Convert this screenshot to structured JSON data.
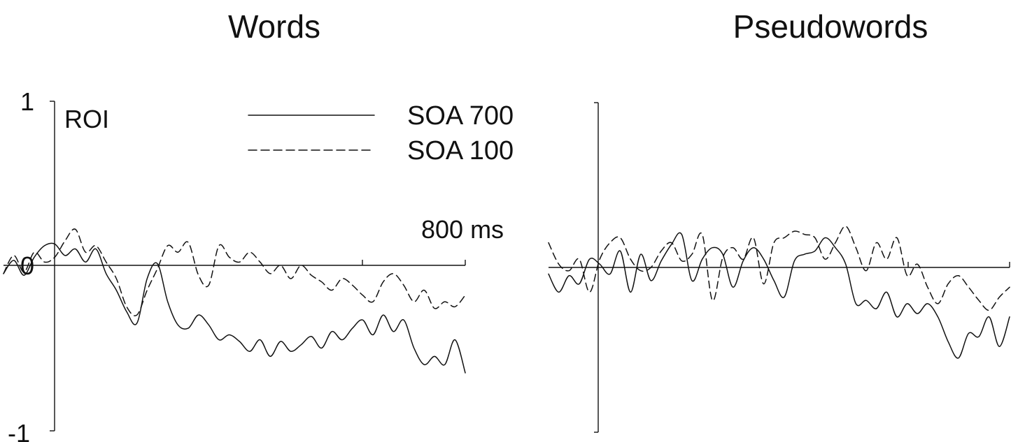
{
  "chart_data": [
    {
      "type": "line",
      "title": "Words",
      "xlabel": "",
      "ylabel": "",
      "xlim": [
        -100,
        800
      ],
      "ylim": [
        -1,
        1
      ],
      "ytick_labels": [
        "1",
        "0",
        "-1"
      ],
      "annotations": {
        "roi": "ROI",
        "time_marker": "800 ms"
      },
      "legend": {
        "placement": "top-center",
        "entries": [
          "SOA 700",
          "SOA 100"
        ]
      },
      "x": [
        -100,
        -80,
        -60,
        -40,
        -20,
        0,
        20,
        40,
        60,
        80,
        100,
        120,
        140,
        160,
        180,
        200,
        220,
        240,
        260,
        280,
        300,
        320,
        340,
        360,
        380,
        400,
        420,
        440,
        460,
        480,
        500,
        520,
        540,
        560,
        580,
        600,
        620,
        640,
        660,
        680,
        700,
        720,
        740,
        760,
        780,
        800
      ],
      "series": [
        {
          "name": "SOA 700",
          "style": "solid",
          "values": [
            -0.05,
            0.03,
            -0.06,
            0.05,
            0.12,
            0.13,
            0.06,
            0.1,
            0.02,
            0.1,
            -0.05,
            -0.15,
            -0.28,
            -0.35,
            -0.08,
            0.01,
            -0.22,
            -0.36,
            -0.38,
            -0.3,
            -0.36,
            -0.45,
            -0.42,
            -0.46,
            -0.52,
            -0.45,
            -0.55,
            -0.46,
            -0.52,
            -0.48,
            -0.43,
            -0.5,
            -0.4,
            -0.45,
            -0.38,
            -0.33,
            -0.42,
            -0.3,
            -0.4,
            -0.33,
            -0.5,
            -0.6,
            -0.55,
            -0.6,
            -0.45,
            -0.65
          ]
        },
        {
          "name": "SOA 100",
          "style": "dashed",
          "values": [
            -0.05,
            0.06,
            -0.04,
            0.08,
            0.02,
            0.05,
            0.15,
            0.22,
            0.08,
            0.12,
            0.02,
            -0.08,
            -0.25,
            -0.3,
            -0.15,
            -0.02,
            0.12,
            0.08,
            0.14,
            -0.06,
            -0.12,
            0.12,
            0.05,
            0.02,
            0.08,
            0.02,
            -0.05,
            0.0,
            -0.08,
            0.0,
            -0.06,
            -0.1,
            -0.15,
            -0.08,
            -0.12,
            -0.18,
            -0.22,
            -0.1,
            -0.05,
            -0.12,
            -0.22,
            -0.15,
            -0.26,
            -0.22,
            -0.25,
            -0.18
          ]
        }
      ]
    },
    {
      "type": "line",
      "title": "Pseudowords",
      "xlabel": "",
      "ylabel": "",
      "xlim": [
        -100,
        800
      ],
      "ylim": [
        -1,
        1
      ],
      "legend": {
        "placement": "none",
        "entries": []
      },
      "x": [
        -100,
        -80,
        -60,
        -40,
        -20,
        0,
        20,
        40,
        60,
        80,
        100,
        120,
        140,
        160,
        180,
        200,
        220,
        240,
        260,
        280,
        300,
        320,
        340,
        360,
        380,
        400,
        420,
        440,
        460,
        480,
        500,
        520,
        540,
        560,
        580,
        600,
        620,
        640,
        660,
        680,
        700,
        720,
        740,
        760,
        780,
        800
      ],
      "series": [
        {
          "name": "SOA 700",
          "style": "solid",
          "values": [
            -0.04,
            -0.15,
            -0.05,
            -0.1,
            0.05,
            0.02,
            -0.04,
            0.1,
            -0.15,
            0.08,
            -0.08,
            0.04,
            0.14,
            0.2,
            -0.08,
            0.05,
            0.12,
            0.08,
            -0.12,
            0.04,
            0.12,
            0.05,
            -0.08,
            -0.18,
            0.04,
            0.08,
            0.1,
            0.18,
            0.12,
            0.02,
            -0.22,
            -0.2,
            -0.25,
            -0.15,
            -0.3,
            -0.22,
            -0.28,
            -0.22,
            -0.3,
            -0.45,
            -0.55,
            -0.4,
            -0.42,
            -0.3,
            -0.48,
            -0.3
          ]
        },
        {
          "name": "SOA 100",
          "style": "dashed",
          "values": [
            0.15,
            0.02,
            -0.02,
            0.05,
            -0.15,
            0.05,
            0.15,
            0.18,
            0.05,
            -0.02,
            0.0,
            0.1,
            0.15,
            0.04,
            0.08,
            0.2,
            -0.2,
            0.06,
            0.12,
            0.05,
            0.18,
            -0.1,
            0.15,
            0.18,
            0.22,
            0.2,
            0.18,
            0.05,
            0.15,
            0.25,
            0.12,
            -0.02,
            0.15,
            0.05,
            0.18,
            -0.05,
            0.02,
            -0.12,
            -0.22,
            -0.1,
            -0.05,
            -0.12,
            -0.2,
            -0.26,
            -0.18,
            -0.12
          ]
        }
      ]
    }
  ]
}
